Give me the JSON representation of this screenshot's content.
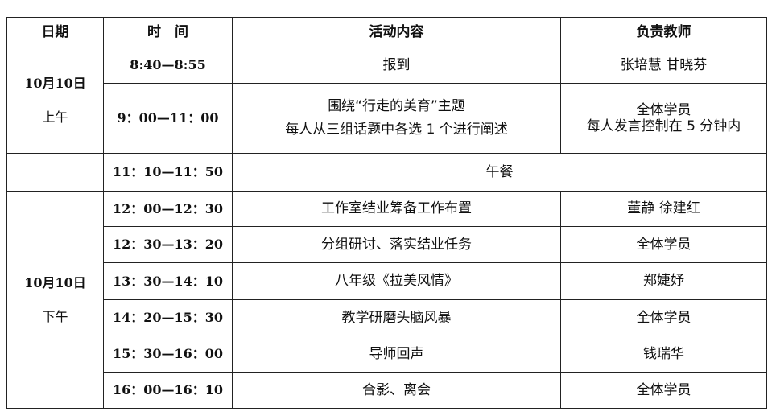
{
  "headers": [
    "日期",
    "时　间",
    "活动内容",
    "负责教师"
  ],
  "morning": {
    "date": "10月10日",
    "period": "上午"
  },
  "afternoon": {
    "date": "10月10日",
    "period": "下午"
  },
  "rows": [
    {
      "time": "8:40—8:55",
      "activity": "报到",
      "teacher": "张培慧 甘晓芬"
    },
    {
      "time": "9：00—11：00",
      "activity": "围绕“行走的美育”主题",
      "activity2": "每人从三组话题中各选 1 个进行阐述",
      "teacher": "全体学员",
      "teacher2": "每人发言控制在 5 分钟内"
    },
    {
      "time": "11：10—11：50",
      "activity": "午餐"
    },
    {
      "time": "12：00—12：30",
      "activity": "工作室结业筹备工作布置",
      "teacher": "董静 徐建红"
    },
    {
      "time": "12：30—13：20",
      "activity": "分组研讨、落实结业任务",
      "teacher": "全体学员"
    },
    {
      "time": "13：30—14：10",
      "activity": "八年级《拉美风情》",
      "teacher": "郑婕妤"
    },
    {
      "time": "14：20—15：30",
      "activity": "教学研磨头脑风暴",
      "teacher": "全体学员"
    },
    {
      "time": "15：30—16：00",
      "activity": "导师回声",
      "teacher": "钱瑞华"
    },
    {
      "time": "16：00—16：10",
      "activity": "合影、离会",
      "teacher": "全体学员"
    }
  ]
}
